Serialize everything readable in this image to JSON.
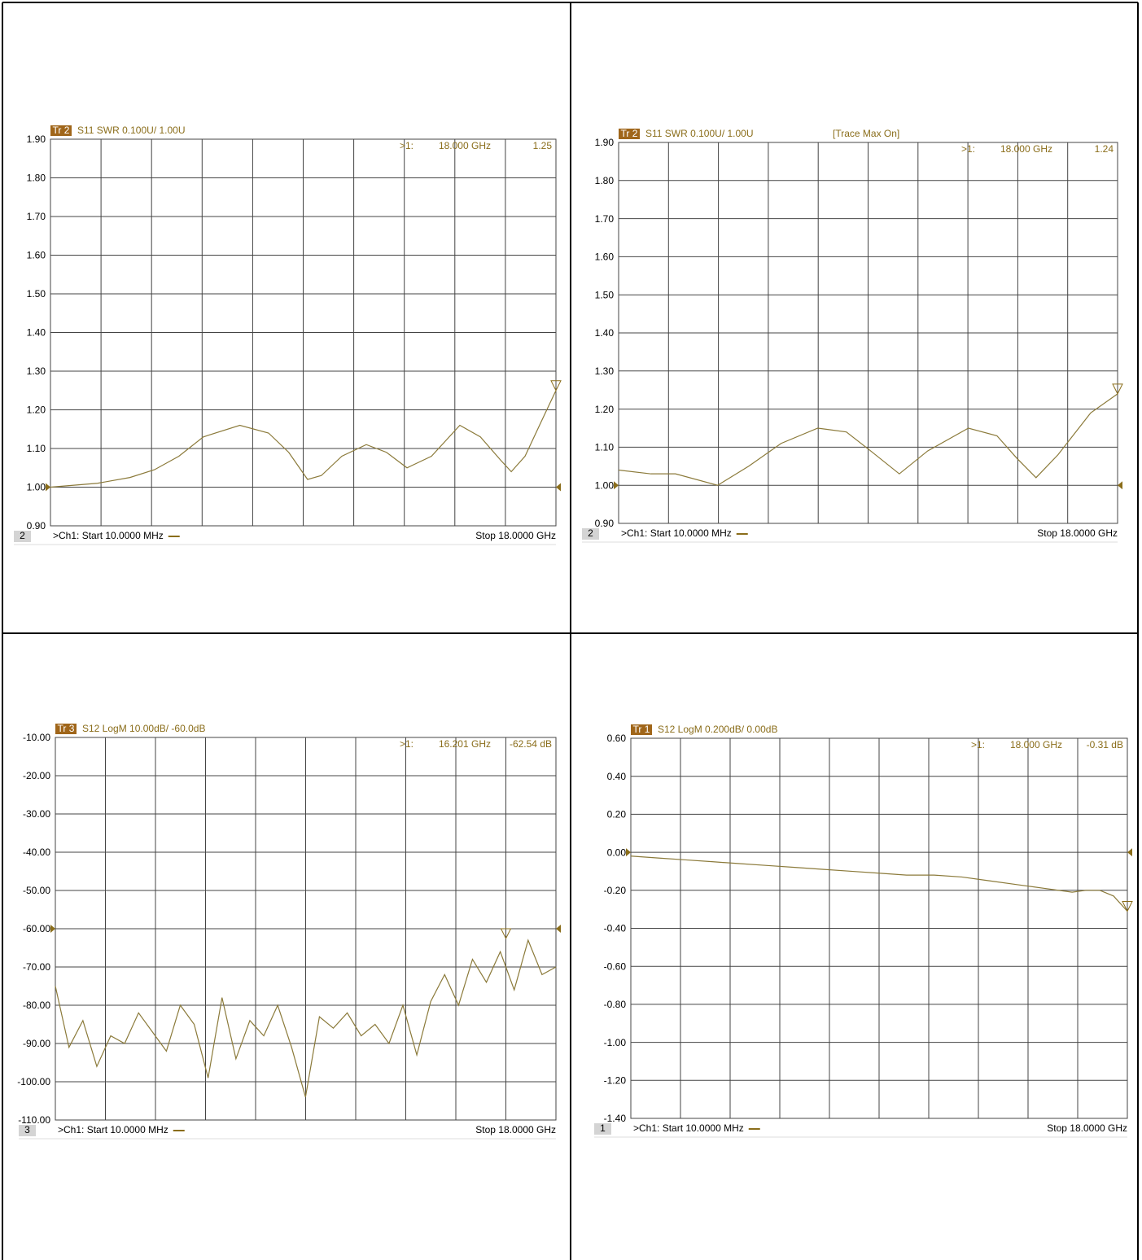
{
  "chart_data": [
    {
      "type": "line",
      "trace": "Tr 2",
      "title": "S11 SWR 0.100U/ 1.00U",
      "channel": "2",
      "marker": {
        "id": ">1:",
        "x": 18.0,
        "y": 1.25,
        "x_label": "18.000 GHz",
        "y_label": "1.25"
      },
      "start": ">Ch1: Start 10.0000 MHz",
      "stop": "Stop 18.0000 GHz",
      "ref_level": 1.0,
      "xlim": [
        0.01,
        18
      ],
      "ylim": [
        0.9,
        1.9
      ],
      "yticks": [
        {
          "value": 1.9,
          "label": "1.90"
        },
        {
          "value": 1.8,
          "label": "1.80"
        },
        {
          "value": 1.7,
          "label": "1.70"
        },
        {
          "value": 1.6,
          "label": "1.60"
        },
        {
          "value": 1.5,
          "label": "1.50"
        },
        {
          "value": 1.4,
          "label": "1.40"
        },
        {
          "value": 1.3,
          "label": "1.30"
        },
        {
          "value": 1.2,
          "label": "1.20"
        },
        {
          "value": 1.1,
          "label": "1.10"
        },
        {
          "value": 1.0,
          "label": "1.00"
        },
        {
          "value": 0.9,
          "label": "0.90"
        }
      ],
      "x": [
        0.01,
        1.68,
        2.84,
        3.71,
        4.58,
        5.45,
        6.75,
        7.77,
        8.49,
        9.16,
        9.65,
        10.38,
        11.25,
        11.97,
        12.7,
        13.57,
        14.58,
        15.31,
        16.03,
        16.41,
        16.9,
        17.48,
        18
      ],
      "values": [
        1.0,
        1.01,
        1.025,
        1.045,
        1.08,
        1.13,
        1.16,
        1.14,
        1.09,
        1.02,
        1.03,
        1.08,
        1.11,
        1.09,
        1.05,
        1.08,
        1.16,
        1.13,
        1.07,
        1.04,
        1.08,
        1.17,
        1.25
      ],
      "color": "#8b7a3a",
      "grid": true
    },
    {
      "type": "line",
      "trace": "Tr 2",
      "title": "S11 SWR 0.100U/ 1.00U",
      "note": "[Trace Max On]",
      "channel": "2",
      "marker": {
        "id": ">1:",
        "x": 18.0,
        "y": 1.24,
        "x_label": "18.000 GHz",
        "y_label": "1.24"
      },
      "start": ">Ch1: Start 10.0000 MHz",
      "stop": "Stop 18.0000 GHz",
      "ref_level": 1.0,
      "xlim": [
        0.01,
        18
      ],
      "ylim": [
        0.9,
        1.9
      ],
      "yticks": [
        {
          "value": 1.9,
          "label": "1.90"
        },
        {
          "value": 1.8,
          "label": "1.80"
        },
        {
          "value": 1.7,
          "label": "1.70"
        },
        {
          "value": 1.6,
          "label": "1.60"
        },
        {
          "value": 1.5,
          "label": "1.50"
        },
        {
          "value": 1.4,
          "label": "1.40"
        },
        {
          "value": 1.3,
          "label": "1.30"
        },
        {
          "value": 1.2,
          "label": "1.20"
        },
        {
          "value": 1.1,
          "label": "1.10"
        },
        {
          "value": 1.0,
          "label": "1.00"
        },
        {
          "value": 0.9,
          "label": "0.90"
        }
      ],
      "x": [
        0.01,
        1.18,
        2.06,
        3.58,
        4.7,
        5.87,
        7.19,
        8.22,
        9.1,
        10.13,
        11.15,
        12.62,
        13.65,
        14.38,
        15.06,
        15.85,
        17.03,
        18
      ],
      "values": [
        1.04,
        1.03,
        1.03,
        1.0,
        1.05,
        1.11,
        1.15,
        1.14,
        1.09,
        1.03,
        1.09,
        1.15,
        1.13,
        1.07,
        1.02,
        1.08,
        1.19,
        1.24
      ],
      "color": "#8b7a3a",
      "grid": true
    },
    {
      "type": "line",
      "trace": "Tr 3",
      "title": "S12 LogM 10.00dB/ -60.0dB",
      "channel": "3",
      "marker": {
        "id": ">1:",
        "x": 16.201,
        "y": -62.54,
        "x_label": "16.201 GHz",
        "y_label": "-62.54 dB"
      },
      "start": ">Ch1: Start 10.0000 MHz",
      "stop": "Stop 18.0000 GHz",
      "ref_level": -60,
      "xlim": [
        0.01,
        18
      ],
      "ylim": [
        -110,
        -10
      ],
      "yticks": [
        {
          "value": -10,
          "label": "-10.00"
        },
        {
          "value": -20,
          "label": "-20.00"
        },
        {
          "value": -30,
          "label": "-30.00"
        },
        {
          "value": -40,
          "label": "-40.00"
        },
        {
          "value": -50,
          "label": "-50.00"
        },
        {
          "value": -60,
          "label": "-60.00"
        },
        {
          "value": -70,
          "label": "-70.00"
        },
        {
          "value": -80,
          "label": "-80.00"
        },
        {
          "value": -90,
          "label": "-90.00"
        },
        {
          "value": -100,
          "label": "-100.00"
        },
        {
          "value": -110,
          "label": "-110.00"
        }
      ],
      "x": [
        0.01,
        0.5,
        1,
        1.5,
        2,
        2.5,
        3,
        3.5,
        4,
        4.5,
        5,
        5.5,
        6,
        6.5,
        7,
        7.5,
        8,
        8.5,
        9,
        9.5,
        10,
        10.5,
        11,
        11.5,
        12,
        12.5,
        13,
        13.5,
        14,
        14.5,
        15,
        15.5,
        16,
        16.5,
        17,
        17.5,
        18
      ],
      "values": [
        -75,
        -91,
        -84,
        -96,
        -88,
        -90,
        -82,
        -87,
        -92,
        -80,
        -85,
        -99,
        -78,
        -94,
        -84,
        -88,
        -80,
        -91,
        -104,
        -83,
        -86,
        -82,
        -88,
        -85,
        -90,
        -80,
        -93,
        -79,
        -72,
        -80,
        -68,
        -74,
        -66,
        -76,
        -63,
        -72,
        -70
      ],
      "color": "#8b7a3a",
      "grid": true
    },
    {
      "type": "line",
      "trace": "Tr 1",
      "title": "S12 LogM 0.200dB/ 0.00dB",
      "channel": "1",
      "marker": {
        "id": ">1:",
        "x": 18.0,
        "y": -0.31,
        "x_label": "18.000 GHz",
        "y_label": "-0.31 dB"
      },
      "start": ">Ch1: Start 10.0000 MHz",
      "stop": "Stop 18.0000 GHz",
      "ref_level": 0,
      "xlim": [
        0.01,
        18
      ],
      "ylim": [
        -1.4,
        0.6
      ],
      "yticks": [
        {
          "value": 0.6,
          "label": "0.60"
        },
        {
          "value": 0.4,
          "label": "0.40"
        },
        {
          "value": 0.2,
          "label": "0.20"
        },
        {
          "value": 0,
          "label": "0.00"
        },
        {
          "value": -0.2,
          "label": "-0.20"
        },
        {
          "value": -0.4,
          "label": "-0.40"
        },
        {
          "value": -0.6,
          "label": "-0.60"
        },
        {
          "value": -0.8,
          "label": "-0.80"
        },
        {
          "value": -1.0,
          "label": "-1.00"
        },
        {
          "value": -1.2,
          "label": "-1.20"
        },
        {
          "value": -1.4,
          "label": "-1.40"
        }
      ],
      "x": [
        0.01,
        1,
        2,
        3,
        4,
        5,
        6,
        7,
        8,
        9,
        10,
        11,
        12,
        13,
        14,
        15,
        16,
        16.5,
        17,
        17.5,
        18
      ],
      "values": [
        -0.02,
        -0.03,
        -0.04,
        -0.05,
        -0.06,
        -0.07,
        -0.08,
        -0.09,
        -0.1,
        -0.11,
        -0.12,
        -0.12,
        -0.13,
        -0.15,
        -0.17,
        -0.19,
        -0.21,
        -0.2,
        -0.2,
        -0.23,
        -0.31
      ],
      "color": "#8b7a3a",
      "grid": true
    }
  ]
}
